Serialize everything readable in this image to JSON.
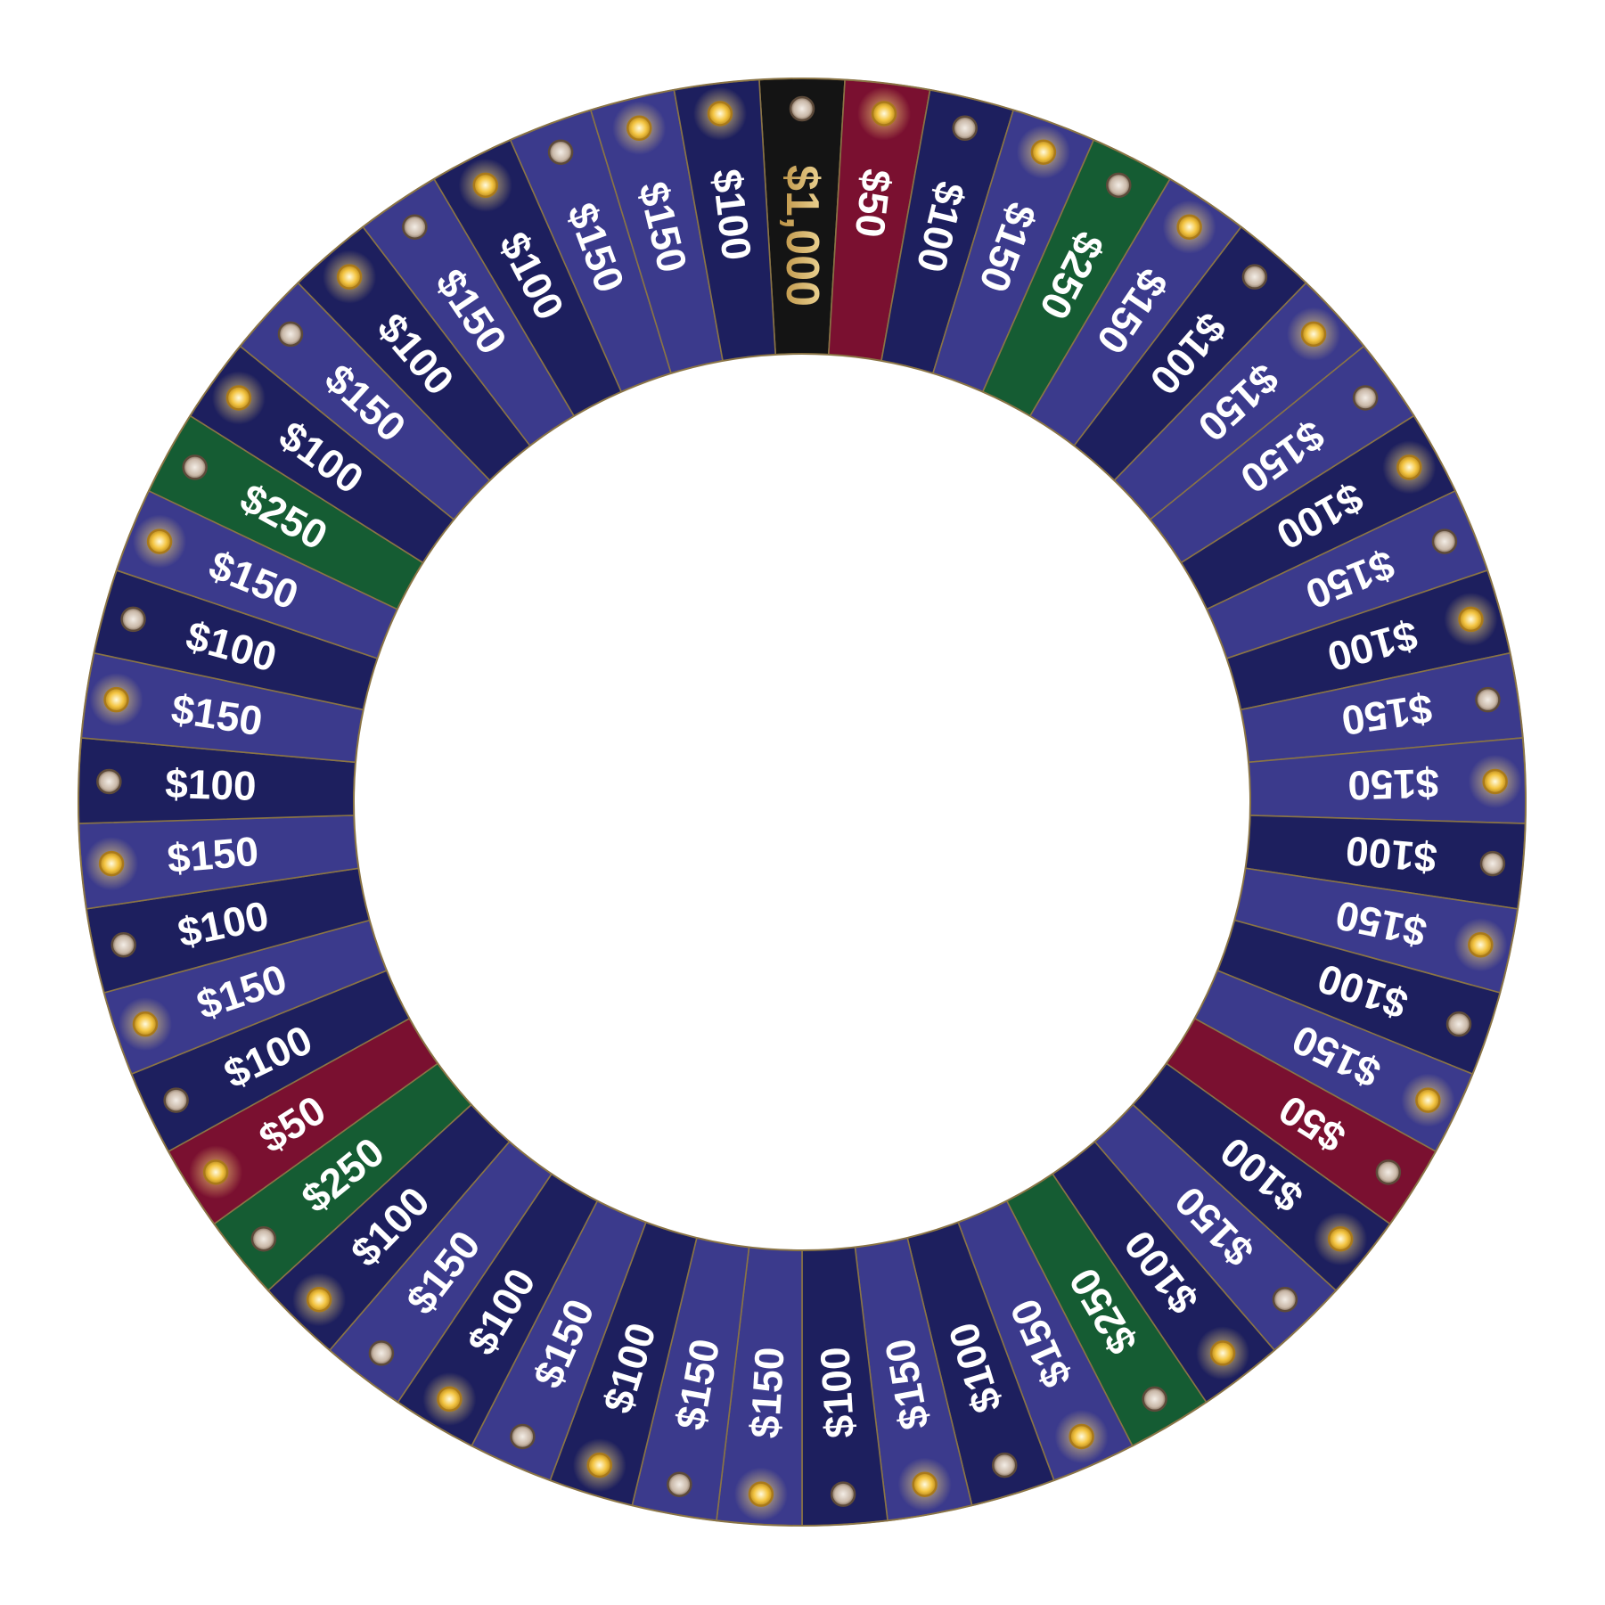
{
  "wheel": {
    "colors": {
      "navy": "#1d1f5e",
      "purple": "#3b3a8c",
      "red": "#7a1030",
      "green": "#155c33",
      "black": "#141414",
      "border": "#8a7445",
      "text": "#ffffff",
      "gold_text": "#e2c98d",
      "bulb_on": "#f4c542",
      "bulb_off": "#c9b8a8"
    },
    "slots": [
      {
        "label": "$1,000",
        "color": "black",
        "bulb": "off"
      },
      {
        "label": "$50",
        "color": "red",
        "bulb": "on"
      },
      {
        "label": "$100",
        "color": "navy",
        "bulb": "off"
      },
      {
        "label": "$150",
        "color": "purple",
        "bulb": "on"
      },
      {
        "label": "$250",
        "color": "green",
        "bulb": "off"
      },
      {
        "label": "$150",
        "color": "purple",
        "bulb": "on"
      },
      {
        "label": "$100",
        "color": "navy",
        "bulb": "off"
      },
      {
        "label": "$150",
        "color": "purple",
        "bulb": "on"
      },
      {
        "label": "$150",
        "color": "purple",
        "bulb": "off"
      },
      {
        "label": "$100",
        "color": "navy",
        "bulb": "on"
      },
      {
        "label": "$150",
        "color": "purple",
        "bulb": "off"
      },
      {
        "label": "$100",
        "color": "navy",
        "bulb": "on"
      },
      {
        "label": "$150",
        "color": "purple",
        "bulb": "off"
      },
      {
        "label": "$150",
        "color": "purple",
        "bulb": "on"
      },
      {
        "label": "$100",
        "color": "navy",
        "bulb": "off"
      },
      {
        "label": "$150",
        "color": "purple",
        "bulb": "on"
      },
      {
        "label": "$100",
        "color": "navy",
        "bulb": "off"
      },
      {
        "label": "$150",
        "color": "purple",
        "bulb": "on"
      },
      {
        "label": "$50",
        "color": "red",
        "bulb": "off"
      },
      {
        "label": "$100",
        "color": "navy",
        "bulb": "on"
      },
      {
        "label": "$150",
        "color": "purple",
        "bulb": "off"
      },
      {
        "label": "$100",
        "color": "navy",
        "bulb": "on"
      },
      {
        "label": "$250",
        "color": "green",
        "bulb": "off"
      },
      {
        "label": "$150",
        "color": "purple",
        "bulb": "on"
      },
      {
        "label": "$100",
        "color": "navy",
        "bulb": "off"
      },
      {
        "label": "$150",
        "color": "purple",
        "bulb": "on"
      },
      {
        "label": "$100",
        "color": "navy",
        "bulb": "off"
      },
      {
        "label": "$150",
        "color": "purple",
        "bulb": "on"
      },
      {
        "label": "$150",
        "color": "purple",
        "bulb": "off"
      },
      {
        "label": "$100",
        "color": "navy",
        "bulb": "on"
      },
      {
        "label": "$150",
        "color": "purple",
        "bulb": "off"
      },
      {
        "label": "$100",
        "color": "navy",
        "bulb": "on"
      },
      {
        "label": "$150",
        "color": "purple",
        "bulb": "off"
      },
      {
        "label": "$100",
        "color": "navy",
        "bulb": "on"
      },
      {
        "label": "$250",
        "color": "green",
        "bulb": "off"
      },
      {
        "label": "$50",
        "color": "red",
        "bulb": "on"
      },
      {
        "label": "$100",
        "color": "navy",
        "bulb": "off"
      },
      {
        "label": "$150",
        "color": "purple",
        "bulb": "on"
      },
      {
        "label": "$100",
        "color": "navy",
        "bulb": "off"
      },
      {
        "label": "$150",
        "color": "purple",
        "bulb": "on"
      },
      {
        "label": "$100",
        "color": "navy",
        "bulb": "off"
      },
      {
        "label": "$150",
        "color": "purple",
        "bulb": "on"
      },
      {
        "label": "$100",
        "color": "navy",
        "bulb": "off"
      },
      {
        "label": "$150",
        "color": "purple",
        "bulb": "on"
      },
      {
        "label": "$250",
        "color": "green",
        "bulb": "off"
      },
      {
        "label": "$100",
        "color": "navy",
        "bulb": "on"
      },
      {
        "label": "$150",
        "color": "purple",
        "bulb": "off"
      },
      {
        "label": "$100",
        "color": "navy",
        "bulb": "on"
      },
      {
        "label": "$150",
        "color": "purple",
        "bulb": "off"
      },
      {
        "label": "$100",
        "color": "navy",
        "bulb": "on"
      },
      {
        "label": "$150",
        "color": "purple",
        "bulb": "off"
      },
      {
        "label": "$150",
        "color": "purple",
        "bulb": "on"
      },
      {
        "label": "$100",
        "color": "navy",
        "bulb": "on"
      }
    ]
  }
}
